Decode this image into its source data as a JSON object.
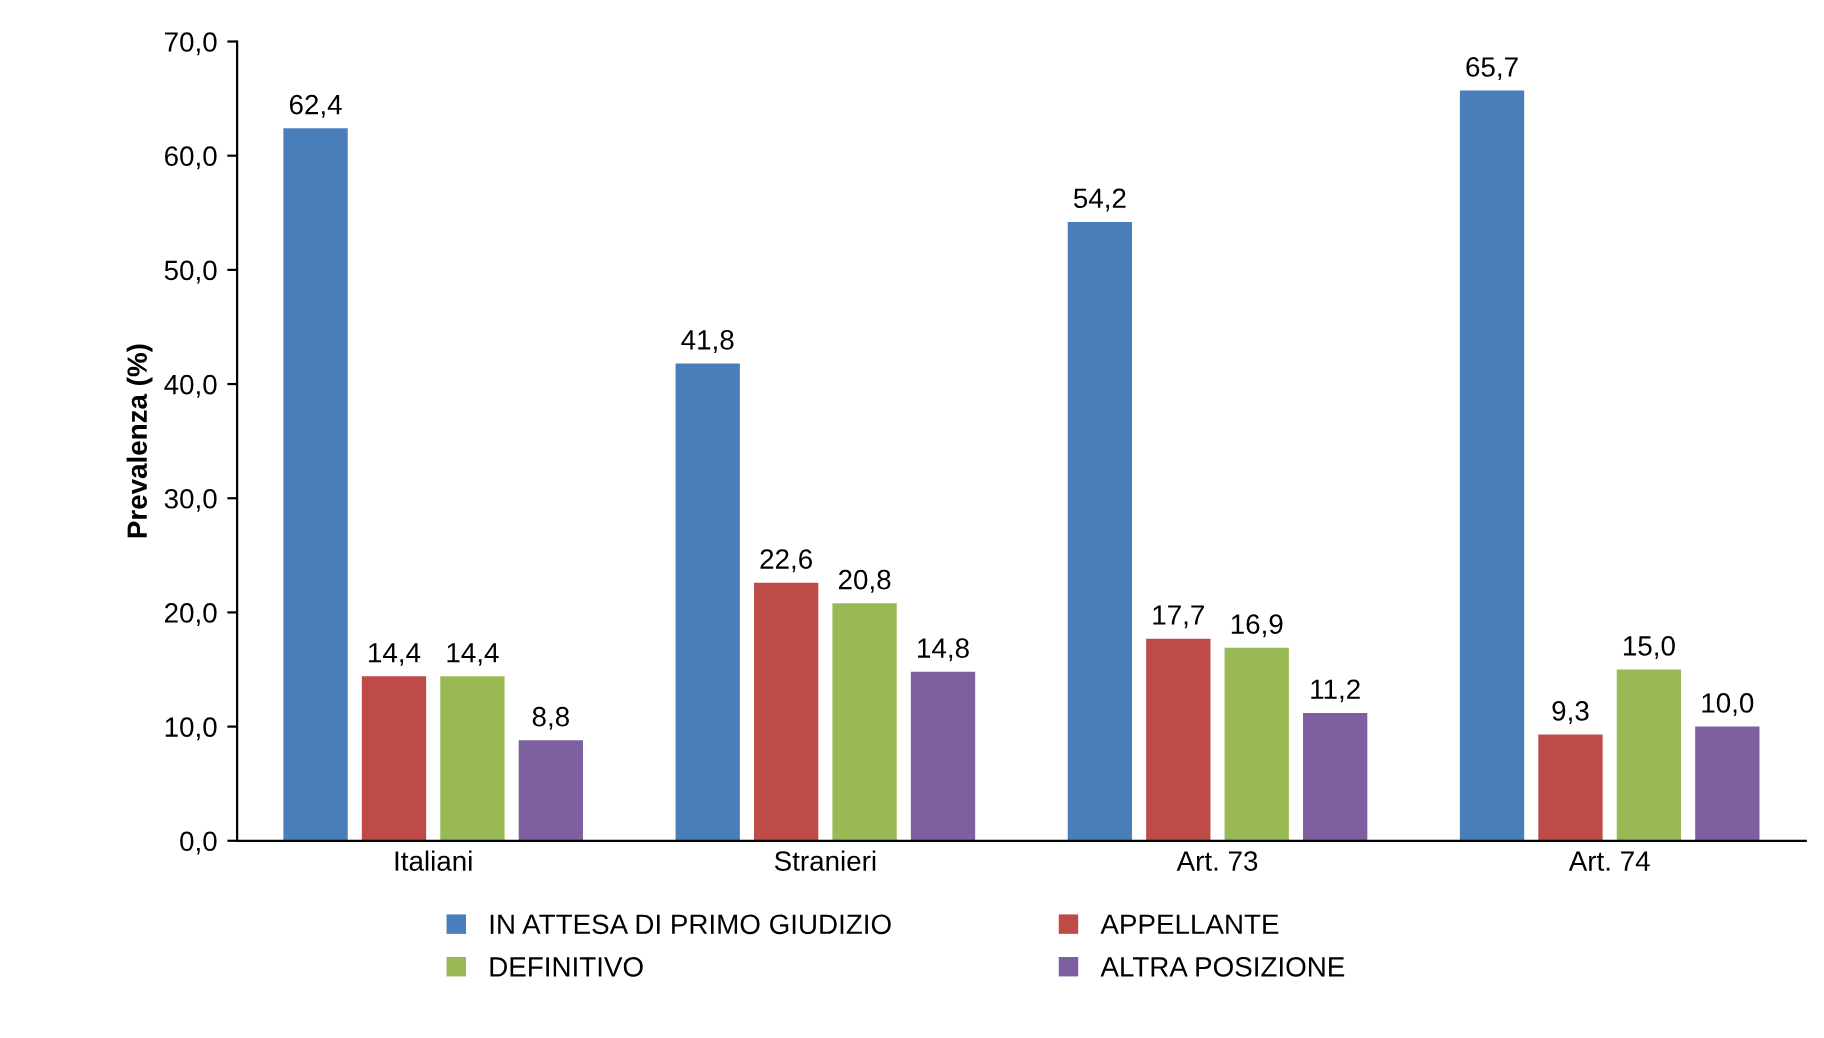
{
  "chart_data": {
    "type": "bar",
    "ylabel": "Prevalenza (%)",
    "categories": [
      "Italiani",
      "Stranieri",
      "Art. 73",
      "Art. 74"
    ],
    "series": [
      {
        "name": "IN ATTESA DI PRIMO GIUDIZIO",
        "color": "#4a7ebb",
        "values": [
          62.4,
          41.8,
          54.2,
          65.7
        ],
        "value_labels": [
          "62,4",
          "41,8",
          "54,2",
          "65,7"
        ]
      },
      {
        "name": "APPELLANTE",
        "color": "#be4b48",
        "values": [
          14.4,
          22.6,
          17.7,
          9.3
        ],
        "value_labels": [
          "14,4",
          "22,6",
          "17,7",
          "9,3"
        ]
      },
      {
        "name": "DEFINITIVO",
        "color": "#98b954",
        "values": [
          14.4,
          20.8,
          16.9,
          15.0
        ],
        "value_labels": [
          "14,4",
          "20,8",
          "16,9",
          "15,0"
        ]
      },
      {
        "name": "ALTRA POSIZIONE",
        "color": "#7d60a0",
        "values": [
          8.8,
          14.8,
          11.2,
          10.0
        ],
        "value_labels": [
          "8,8",
          "14,8",
          "11,2",
          "10,0"
        ]
      }
    ],
    "ylim": [
      0,
      70
    ],
    "yticks": [
      {
        "value": 0,
        "label": "0,0"
      },
      {
        "value": 10,
        "label": "10,0"
      },
      {
        "value": 20,
        "label": "20,0"
      },
      {
        "value": 30,
        "label": "30,0"
      },
      {
        "value": 40,
        "label": "40,0"
      },
      {
        "value": 50,
        "label": "50,0"
      },
      {
        "value": 60,
        "label": "60,0"
      },
      {
        "value": 70,
        "label": "70,0"
      }
    ],
    "grid": false,
    "legend": "bottom"
  }
}
